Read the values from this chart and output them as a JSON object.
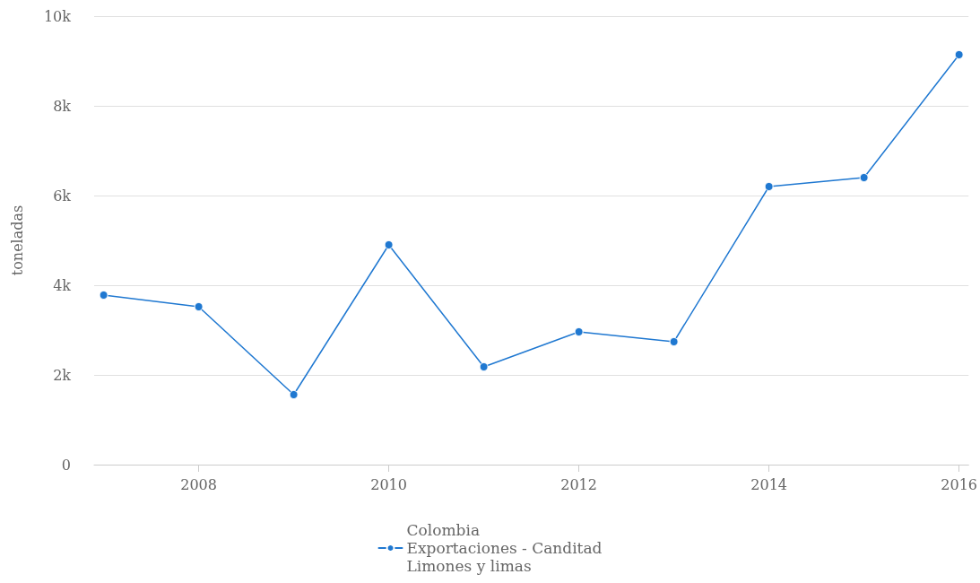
{
  "chart_data": {
    "type": "line",
    "ylabel": "toneladas",
    "x": [
      2007,
      2008,
      2009,
      2010,
      2011,
      2012,
      2013,
      2014,
      2015,
      2016
    ],
    "series": [
      {
        "name": "Colombia\nExportaciones - Canditad\nLimones y limas",
        "color": "#1f78d1",
        "values": [
          3780,
          3520,
          1560,
          4900,
          2180,
          2960,
          2740,
          6200,
          6400,
          9140
        ]
      }
    ],
    "xlim": [
      2006.9,
      2016.1
    ],
    "xticks": [
      2008,
      2010,
      2012,
      2014,
      2016
    ],
    "ylim": [
      0,
      10000
    ],
    "yticks": [
      0,
      {
        "value": 2000,
        "label": "2k"
      },
      {
        "value": 4000,
        "label": "4k"
      },
      {
        "value": 6000,
        "label": "6k"
      },
      {
        "value": 8000,
        "label": "8k"
      },
      {
        "value": 10000,
        "label": "10k"
      }
    ],
    "grid": "y",
    "legend": "bottom",
    "marker": "circle",
    "line_style": "solid"
  }
}
